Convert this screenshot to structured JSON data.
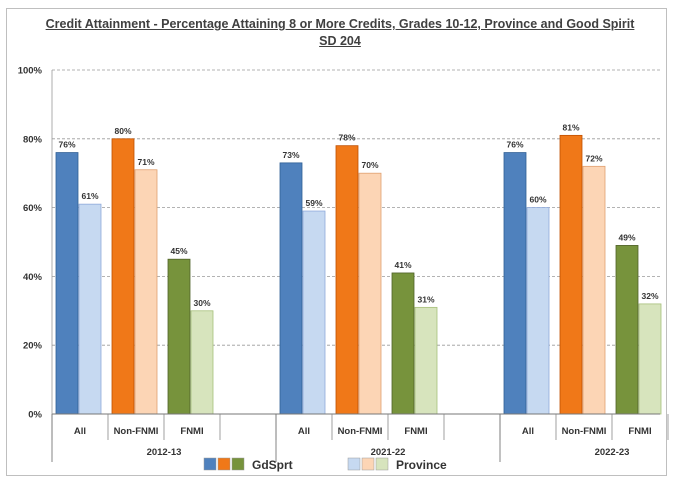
{
  "chart_data": {
    "type": "bar",
    "title": "Credit Attainment - Percentage Attaining 8 or More Credits, Grades 10-12, Province and Good Spirit SD 204",
    "ylim": [
      0,
      100
    ],
    "y_ticks": [
      "0%",
      "20%",
      "40%",
      "60%",
      "80%",
      "100%"
    ],
    "grid": true,
    "years": [
      "2012-13",
      "2021-22",
      "2022-23"
    ],
    "categories": [
      "All",
      "Non-FNMI",
      "FNMI"
    ],
    "series": [
      {
        "name": "GdSprt",
        "values": [
          [
            76,
            80,
            45
          ],
          [
            73,
            78,
            41
          ],
          [
            76,
            81,
            49
          ]
        ],
        "labels": [
          [
            "76%",
            "80%",
            "45%"
          ],
          [
            "73%",
            "78%",
            "41%"
          ],
          [
            "76%",
            "81%",
            "49%"
          ]
        ]
      },
      {
        "name": "Province",
        "values": [
          [
            61,
            71,
            30
          ],
          [
            59,
            70,
            31
          ],
          [
            60,
            72,
            32
          ]
        ],
        "labels": [
          [
            "61%",
            "71%",
            "30%"
          ],
          [
            "59%",
            "70%",
            "31%"
          ],
          [
            "60%",
            "72%",
            "32%"
          ]
        ]
      }
    ],
    "colors": {
      "gdsprt": [
        "#4f81bd",
        "#f07818",
        "#77933c"
      ],
      "province": [
        "#c6d9f1",
        "#fcd5b5",
        "#d7e4bd"
      ],
      "gdsprt_edge": [
        "#2f5f95",
        "#c05000",
        "#4f6228"
      ],
      "province_edge": [
        "#8eaadb",
        "#e0a070",
        "#a6c07a"
      ]
    },
    "legend": {
      "position": "bottom",
      "items": [
        {
          "label": "GdSprt",
          "swatches": [
            "#4f81bd",
            "#f07818",
            "#77933c"
          ]
        },
        {
          "label": "Province",
          "swatches": [
            "#c6d9f1",
            "#fcd5b5",
            "#d7e4bd"
          ]
        }
      ]
    }
  }
}
